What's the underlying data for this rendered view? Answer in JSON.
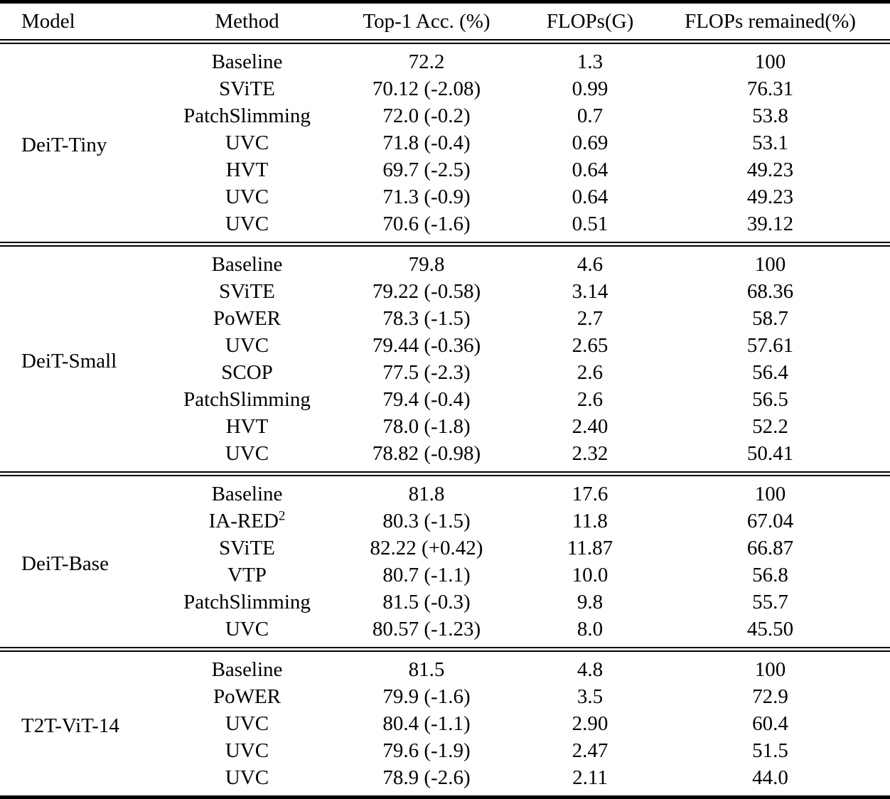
{
  "page": {
    "background": "#ffffff",
    "text_color": "#000000",
    "rule_color": "#000000"
  },
  "chart_data": {
    "type": "table",
    "columns": [
      "Model",
      "Method",
      "Top-1 Acc. (%)",
      "FLOPs(G)",
      "FLOPs remained(%)"
    ],
    "sections": [
      {
        "model": "DeiT-Tiny",
        "rows": [
          [
            "Baseline",
            "72.2",
            "1.3",
            "100"
          ],
          [
            "SViTE",
            "70.12 (-2.08)",
            "0.99",
            "76.31"
          ],
          [
            "PatchSlimming",
            "72.0 (-0.2)",
            "0.7",
            "53.8"
          ],
          [
            "UVC",
            "71.8 (-0.4)",
            "0.69",
            "53.1"
          ],
          [
            "HVT",
            "69.7 (-2.5)",
            "0.64",
            "49.23"
          ],
          [
            "UVC",
            "71.3 (-0.9)",
            "0.64",
            "49.23"
          ],
          [
            "UVC",
            "70.6 (-1.6)",
            "0.51",
            "39.12"
          ]
        ]
      },
      {
        "model": "DeiT-Small",
        "rows": [
          [
            "Baseline",
            "79.8",
            "4.6",
            "100"
          ],
          [
            "SViTE",
            "79.22 (-0.58)",
            "3.14",
            "68.36"
          ],
          [
            "PoWER",
            "78.3 (-1.5)",
            "2.7",
            "58.7"
          ],
          [
            "UVC",
            "79.44 (-0.36)",
            "2.65",
            "57.61"
          ],
          [
            "SCOP",
            "77.5 (-2.3)",
            "2.6",
            "56.4"
          ],
          [
            "PatchSlimming",
            "79.4 (-0.4)",
            "2.6",
            "56.5"
          ],
          [
            "HVT",
            "78.0 (-1.8)",
            "2.40",
            "52.2"
          ],
          [
            "UVC",
            "78.82 (-0.98)",
            "2.32",
            "50.41"
          ]
        ]
      },
      {
        "model": "DeiT-Base",
        "rows": [
          [
            "Baseline",
            "81.8",
            "17.6",
            "100"
          ],
          [
            "IA-RED²",
            "80.3 (-1.5)",
            "11.8",
            "67.04"
          ],
          [
            "SViTE",
            "82.22 (+0.42)",
            "11.87",
            "66.87"
          ],
          [
            "VTP",
            "80.7 (-1.1)",
            "10.0",
            "56.8"
          ],
          [
            "PatchSlimming",
            "81.5 (-0.3)",
            "9.8",
            "55.7"
          ],
          [
            "UVC",
            "80.57 (-1.23)",
            "8.0",
            "45.50"
          ]
        ]
      },
      {
        "model": "T2T-ViT-14",
        "rows": [
          [
            "Baseline",
            "81.5",
            "4.8",
            "100"
          ],
          [
            "PoWER",
            "79.9 (-1.6)",
            "3.5",
            "72.9"
          ],
          [
            "UVC",
            "80.4 (-1.1)",
            "2.90",
            "60.4"
          ],
          [
            "UVC",
            "79.6 (-1.9)",
            "2.47",
            "51.5"
          ],
          [
            "UVC",
            "78.9 (-2.6)",
            "2.11",
            "44.0"
          ]
        ]
      }
    ]
  }
}
